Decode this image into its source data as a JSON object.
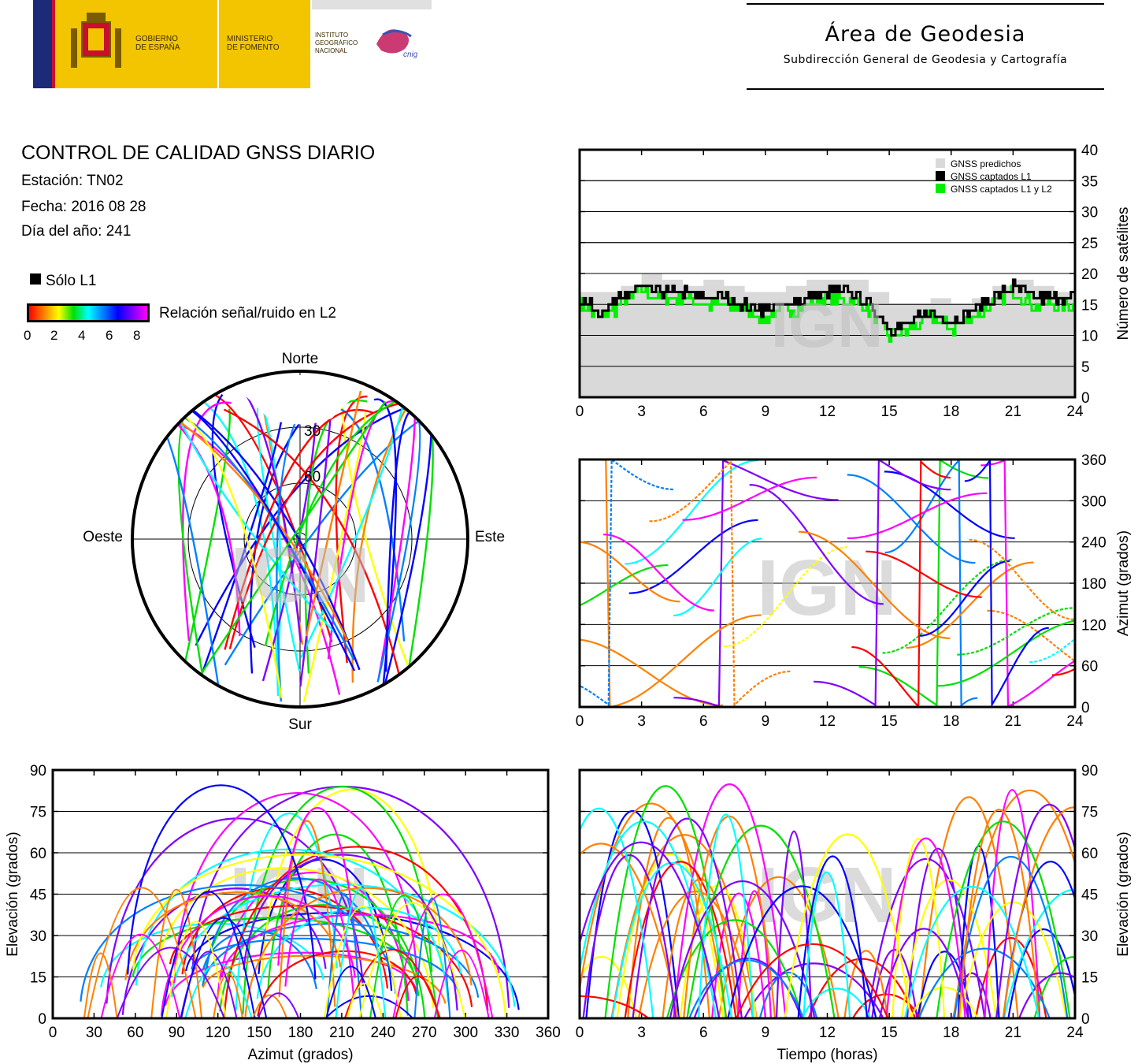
{
  "header": {
    "gov_text": "GOBIERNO\nDE ESPAÑA",
    "ministry_text": "MINISTERIO\nDE FOMENTO",
    "institute_text": "INSTITUTO\nGEOGRÁFICO\nNACIONAL",
    "cnig_text": "cnig",
    "area_title": "Área de Geodesia",
    "area_subtitle": "Subdirección General de Geodesia y Cartografía"
  },
  "info": {
    "title": "CONTROL DE CALIDAD GNSS DIARIO",
    "station": "Estación: TN02",
    "date": "Fecha: 2016 08 28",
    "doy": "Día del año: 241"
  },
  "legend": {
    "l1_only": "Sólo L1",
    "snr_label": "Relación señal/ruido en L2",
    "snr_ticks": [
      "0",
      "2",
      "4",
      "6",
      "8"
    ],
    "snr_colors": [
      "#ff0000",
      "#ff8000",
      "#ffff00",
      "#00e000",
      "#00ffff",
      "#0080ff",
      "#0000ff",
      "#8000ff",
      "#ff00ff"
    ]
  },
  "watermark": "IGN",
  "chart_data": [
    {
      "type": "line",
      "id": "satellite-count",
      "ylabel": "Número de satélites",
      "xlim": [
        0,
        24
      ],
      "ylim": [
        0,
        40
      ],
      "xticks": [
        0,
        3,
        6,
        9,
        12,
        15,
        18,
        21,
        24
      ],
      "yticks": [
        0,
        5,
        10,
        15,
        20,
        25,
        30,
        35,
        40
      ],
      "legend": [
        "GNSS predichos",
        "GNSS captados L1",
        "GNSS captados L1 y L2"
      ],
      "legend_colors": [
        "#d9d9d9",
        "#000000",
        "#00ee00"
      ],
      "grid": true,
      "x": [
        0,
        1,
        2,
        3,
        4,
        5,
        6,
        7,
        8,
        9,
        10,
        11,
        12,
        13,
        14,
        15,
        16,
        17,
        18,
        19,
        20,
        21,
        22,
        23,
        24
      ],
      "series": [
        {
          "name": "GNSS predichos",
          "values": [
            17,
            17,
            18,
            20,
            19,
            18,
            19,
            18,
            17,
            17,
            18,
            19,
            19,
            19,
            17,
            15,
            15,
            16,
            15,
            16,
            18,
            19,
            18,
            17,
            17
          ]
        },
        {
          "name": "GNSS captados L1",
          "values": [
            16,
            14,
            16,
            18,
            17,
            17,
            16,
            16,
            15,
            14,
            15,
            16,
            17,
            17,
            15,
            11,
            12,
            14,
            12,
            14,
            16,
            18,
            16,
            16,
            16
          ]
        },
        {
          "name": "GNSS captados L1 y L2",
          "values": [
            15,
            13,
            15,
            17,
            16,
            16,
            15,
            15,
            14,
            13,
            14,
            15,
            16,
            16,
            14,
            10,
            11,
            13,
            11,
            13,
            15,
            17,
            15,
            15,
            15
          ]
        }
      ]
    },
    {
      "type": "scatter",
      "id": "azimuth-vs-time",
      "ylabel": "Azimut (grados)",
      "xlim": [
        0,
        24
      ],
      "ylim": [
        0,
        360
      ],
      "xticks": [
        0,
        3,
        6,
        9,
        12,
        15,
        18,
        21,
        24
      ],
      "yticks": [
        0,
        60,
        120,
        180,
        240,
        300,
        360
      ],
      "grid": true
    },
    {
      "type": "scatter",
      "id": "skyplot",
      "cardinals": [
        "Norte",
        "Este",
        "Sur",
        "Oeste"
      ],
      "ring_labels": [
        "30",
        "60"
      ]
    },
    {
      "type": "scatter",
      "id": "elevation-vs-azimuth",
      "xlabel": "Azimut (grados)",
      "ylabel": "Elevación (grados)",
      "xlim": [
        0,
        360
      ],
      "ylim": [
        0,
        90
      ],
      "xticks": [
        0,
        30,
        60,
        90,
        120,
        150,
        180,
        210,
        240,
        270,
        300,
        330,
        360
      ],
      "yticks": [
        0,
        15,
        30,
        45,
        60,
        75,
        90
      ],
      "grid": true
    },
    {
      "type": "scatter",
      "id": "elevation-vs-time",
      "xlabel": "Tiempo (horas)",
      "ylabel": "Elevación (grados)",
      "xlim": [
        0,
        24
      ],
      "ylim": [
        0,
        90
      ],
      "xticks": [
        0,
        3,
        6,
        9,
        12,
        15,
        18,
        21,
        24
      ],
      "yticks": [
        0,
        15,
        30,
        45,
        60,
        75,
        90
      ],
      "grid": true
    }
  ]
}
